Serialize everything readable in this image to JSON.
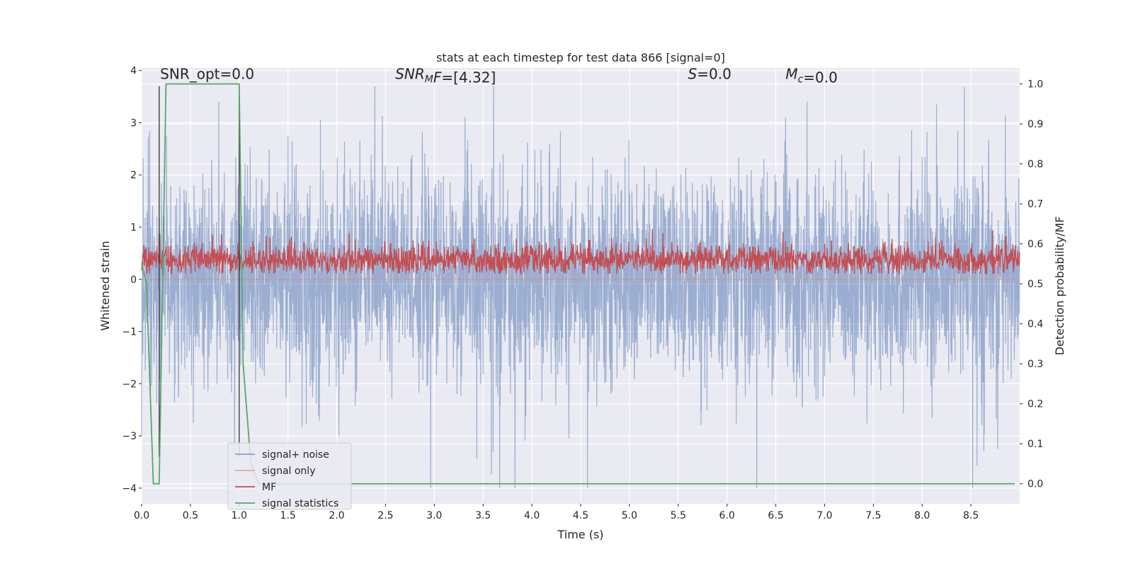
{
  "chart_data": {
    "type": "line",
    "title": "stats at each timestep for test data 866 [signal=0]",
    "xlabel": "Time (s)",
    "ylabel": "Whitened strain",
    "y2label": "Detection probability/MF",
    "xlim": [
      0.0,
      9.0
    ],
    "ylim": [
      -4.3,
      4.05
    ],
    "y2lim": [
      -0.05,
      1.04
    ],
    "xticks": [
      0.0,
      0.5,
      1.0,
      1.5,
      2.0,
      2.5,
      3.0,
      3.5,
      4.0,
      4.5,
      5.0,
      5.5,
      6.0,
      6.5,
      7.0,
      7.5,
      8.0,
      8.5
    ],
    "xtick_labels": [
      "0.0",
      "0.5",
      "1.0",
      "1.5",
      "2.0",
      "2.5",
      "3.0",
      "3.5",
      "4.0",
      "4.5",
      "5.0",
      "5.5",
      "6.0",
      "6.5",
      "7.0",
      "7.5",
      "8.0",
      "8.5"
    ],
    "yticks": [
      4,
      3,
      2,
      1,
      0,
      -1,
      -2,
      -3,
      -4
    ],
    "ytick_labels": [
      "4",
      "3",
      "2",
      "1",
      "0",
      "−1",
      "−2",
      "−3",
      "−4"
    ],
    "y2ticks": [
      1.0,
      0.9,
      0.8,
      0.7,
      0.6,
      0.5,
      0.4,
      0.3,
      0.2,
      0.1,
      0.0
    ],
    "y2tick_labels": [
      "1.0",
      "0.9",
      "0.8",
      "0.7",
      "0.6",
      "0.5",
      "0.4",
      "0.3",
      "0.2",
      "0.1",
      "0.0"
    ],
    "grid": true,
    "legend_position": "lower-left",
    "annotations": [
      {
        "id": "snr-opt",
        "parts": [
          {
            "t": "SNR_opt=0.0",
            "i": false
          }
        ],
        "x": 0.19,
        "y": 3.95
      },
      {
        "id": "snr-mf",
        "parts": [
          {
            "t": "SNR",
            "i": true
          },
          {
            "t": "M",
            "i": true,
            "sub": true
          },
          {
            "t": "F",
            "i": true
          },
          {
            "t": "=[4.32]",
            "i": false
          }
        ],
        "x": 2.6,
        "y": 3.95
      },
      {
        "id": "s-value",
        "parts": [
          {
            "t": "S",
            "i": true
          },
          {
            "t": "=0.0",
            "i": false
          }
        ],
        "x": 5.6,
        "y": 3.95
      },
      {
        "id": "mc-value",
        "parts": [
          {
            "t": "M",
            "i": true
          },
          {
            "t": "c",
            "i": true,
            "sub": true
          },
          {
            "t": "=0.0",
            "i": false
          }
        ],
        "x": 6.6,
        "y": 3.95
      }
    ],
    "vlines": [
      0.18,
      1.0
    ],
    "series": [
      {
        "name": "signal+ noise",
        "color": "#4c72b0",
        "axis": "left",
        "style": "noise",
        "t_range": [
          0.0,
          9.0
        ]
      },
      {
        "name": "signal only",
        "color": "#dd8452",
        "axis": "left",
        "style": "flat",
        "t_range": [
          0.0,
          9.0
        ]
      },
      {
        "name": "MF",
        "color": "#c44e52",
        "axis": "left",
        "style": "mf",
        "t_range": [
          0.0,
          9.0
        ]
      },
      {
        "name": "signal statistics",
        "color": "#55a868",
        "axis": "right",
        "x": [
          0.0,
          0.05,
          0.12,
          0.18,
          0.25,
          1.0,
          1.04,
          1.12,
          1.2,
          3.0,
          8.95
        ],
        "y": [
          0.55,
          0.5,
          0.0,
          0.0,
          1.0,
          1.0,
          0.3,
          0.05,
          0.0,
          0.0,
          0.0
        ]
      }
    ]
  }
}
